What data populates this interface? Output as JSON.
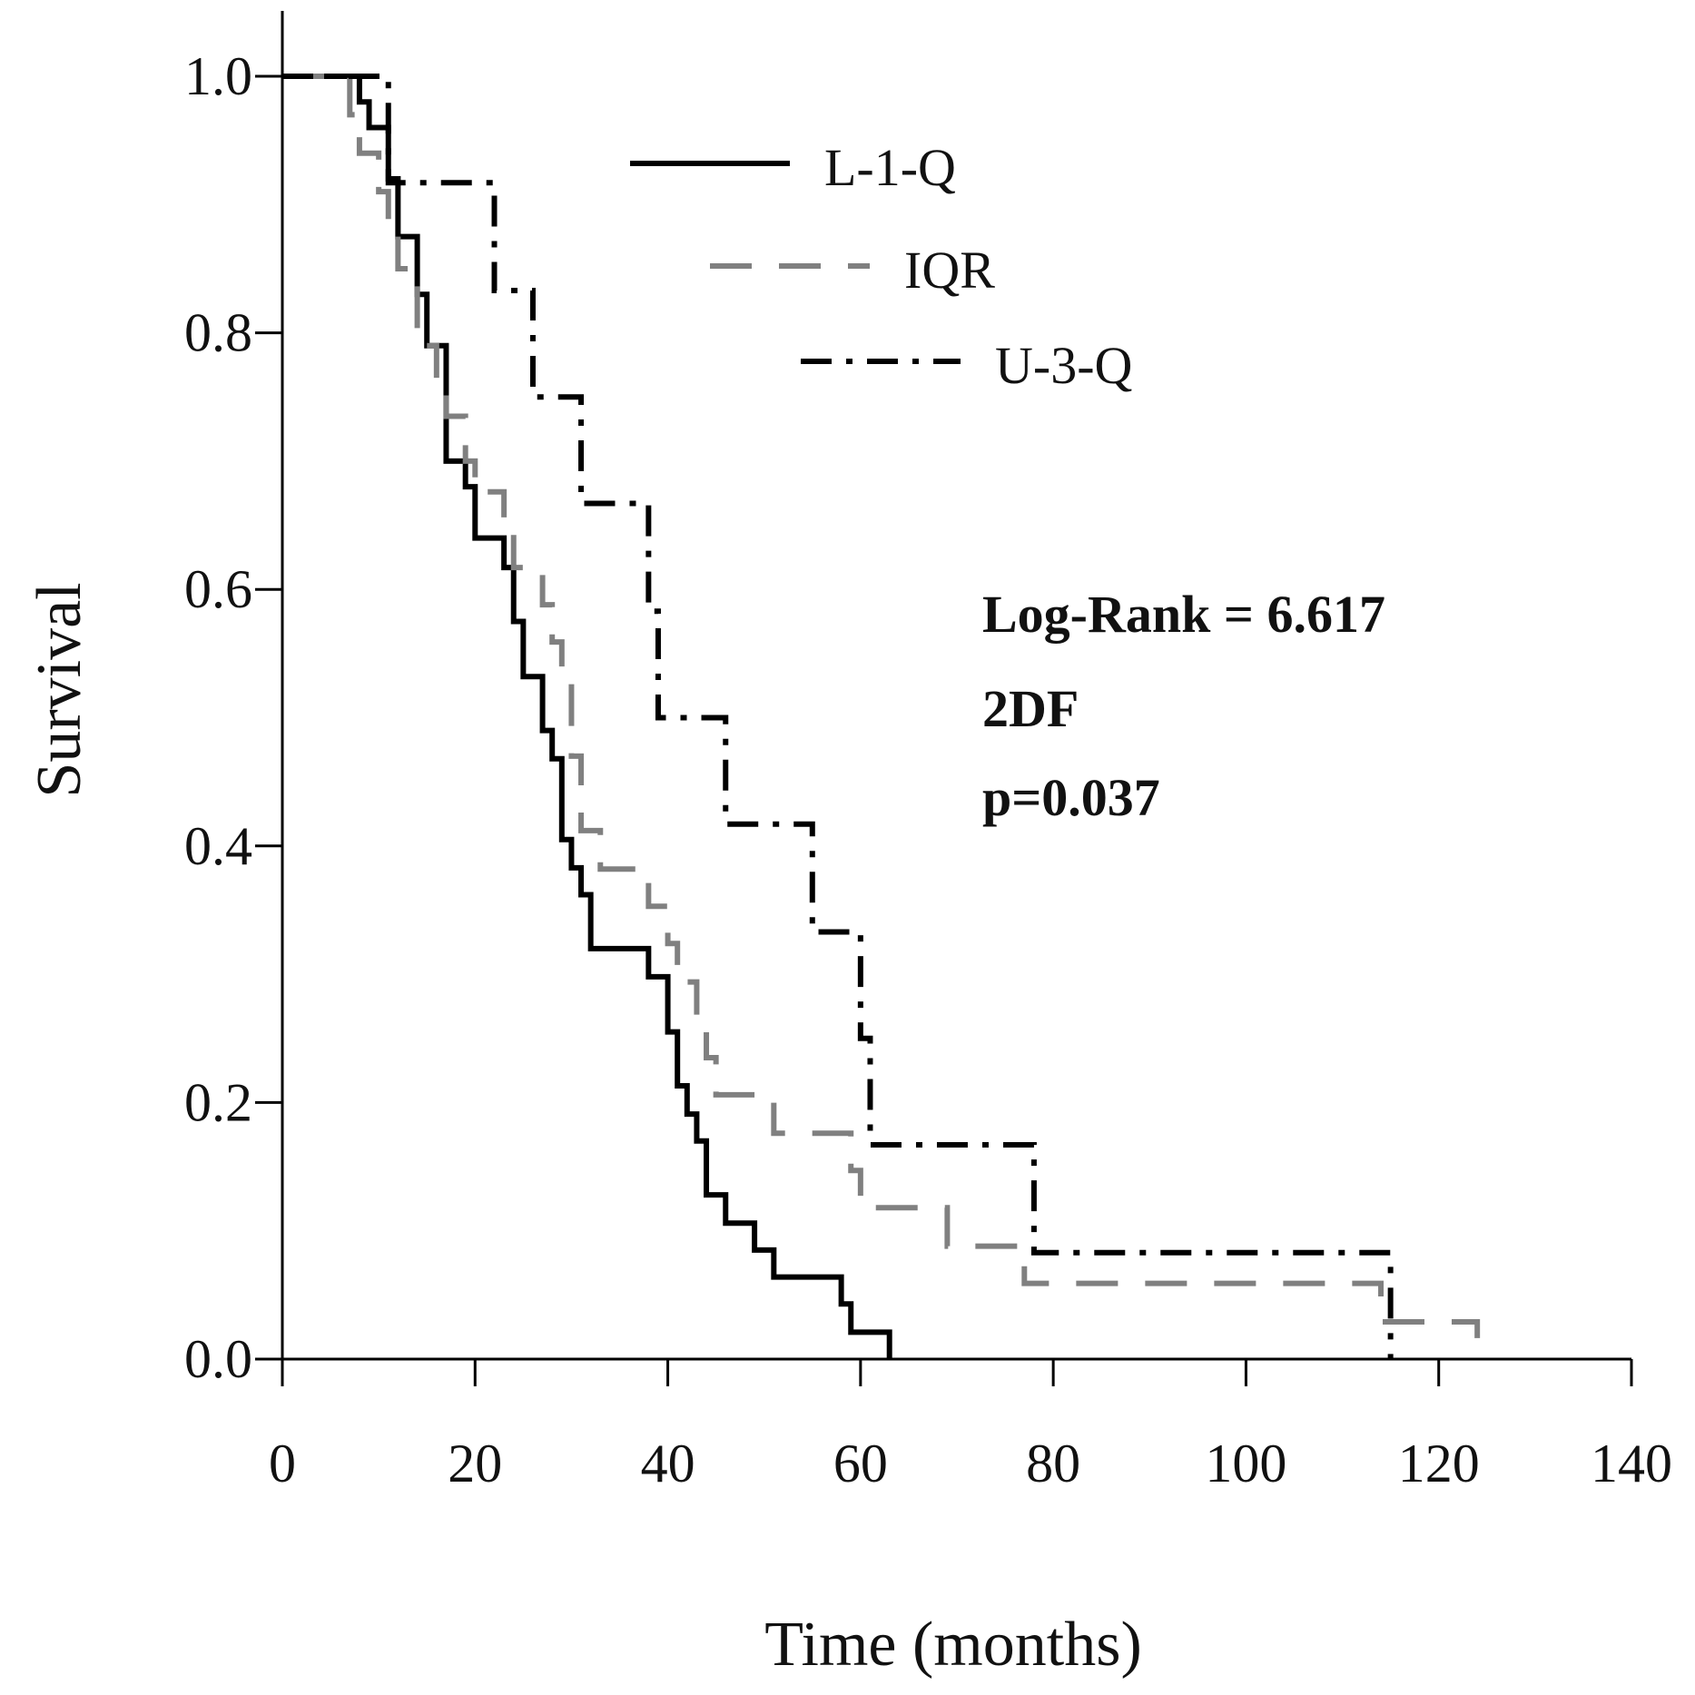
{
  "chart_data": {
    "type": "line",
    "step": true,
    "title": "",
    "xlabel": "Time (months)",
    "ylabel": "Survival",
    "xlim": [
      0,
      140
    ],
    "ylim": [
      0,
      1.0
    ],
    "x_ticks": [
      "0",
      "20",
      "40",
      "60",
      "80",
      "100",
      "120",
      "140"
    ],
    "x_tick_values": [
      0,
      20,
      40,
      60,
      80,
      100,
      120,
      140
    ],
    "y_ticks": [
      "0.0",
      "0.2",
      "0.4",
      "0.6",
      "0.8",
      "1.0"
    ],
    "y_tick_values": [
      0,
      0.2,
      0.4,
      0.6,
      0.8,
      1.0
    ],
    "grid": false,
    "legend_position": "top-center",
    "series": [
      {
        "name": "L-1-Q",
        "color": "#000000",
        "style": "solid",
        "points": [
          [
            0,
            1.0
          ],
          [
            8,
            0.98
          ],
          [
            9,
            0.96
          ],
          [
            11,
            0.92
          ],
          [
            12,
            0.875
          ],
          [
            14,
            0.83
          ],
          [
            15,
            0.79
          ],
          [
            17,
            0.7
          ],
          [
            19,
            0.68
          ],
          [
            20,
            0.64
          ],
          [
            23,
            0.617
          ],
          [
            24,
            0.575
          ],
          [
            25,
            0.532
          ],
          [
            27,
            0.49
          ],
          [
            28,
            0.468
          ],
          [
            29,
            0.405
          ],
          [
            30,
            0.383
          ],
          [
            31,
            0.362
          ],
          [
            32,
            0.32
          ],
          [
            38,
            0.298
          ],
          [
            40,
            0.255
          ],
          [
            41,
            0.213
          ],
          [
            42,
            0.191
          ],
          [
            43,
            0.17
          ],
          [
            44,
            0.128
          ],
          [
            46,
            0.106
          ],
          [
            49,
            0.085
          ],
          [
            51,
            0.064
          ],
          [
            58,
            0.043
          ],
          [
            59,
            0.021
          ],
          [
            63,
            0.0
          ]
        ]
      },
      {
        "name": "IQR",
        "color": "#808080",
        "style": "dashed",
        "points": [
          [
            0,
            1.0
          ],
          [
            7,
            0.97
          ],
          [
            8,
            0.94
          ],
          [
            10,
            0.91
          ],
          [
            11,
            0.88
          ],
          [
            12,
            0.85
          ],
          [
            14,
            0.79
          ],
          [
            16,
            0.76
          ],
          [
            17,
            0.735
          ],
          [
            19,
            0.7
          ],
          [
            20,
            0.676
          ],
          [
            23,
            0.647
          ],
          [
            24,
            0.617
          ],
          [
            27,
            0.588
          ],
          [
            28,
            0.559
          ],
          [
            29,
            0.529
          ],
          [
            30,
            0.47
          ],
          [
            31,
            0.412
          ],
          [
            33,
            0.382
          ],
          [
            38,
            0.353
          ],
          [
            40,
            0.324
          ],
          [
            41,
            0.294
          ],
          [
            43,
            0.265
          ],
          [
            44,
            0.235
          ],
          [
            45,
            0.206
          ],
          [
            51,
            0.176
          ],
          [
            59,
            0.147
          ],
          [
            60,
            0.118
          ],
          [
            69,
            0.088
          ],
          [
            77,
            0.059
          ],
          [
            114,
            0.029
          ],
          [
            124,
            0.0
          ]
        ]
      },
      {
        "name": "U-3-Q",
        "color": "#000000",
        "style": "dashdot",
        "points": [
          [
            0,
            1.0
          ],
          [
            11,
            0.917
          ],
          [
            22,
            0.833
          ],
          [
            26,
            0.75
          ],
          [
            31,
            0.667
          ],
          [
            38,
            0.583
          ],
          [
            39,
            0.5
          ],
          [
            46,
            0.417
          ],
          [
            55,
            0.333
          ],
          [
            60,
            0.25
          ],
          [
            61,
            0.167
          ],
          [
            78,
            0.083
          ],
          [
            115,
            0.0
          ]
        ]
      }
    ],
    "annotations": [
      "Log-Rank = 6.617",
      "2DF",
      "p=0.037"
    ]
  }
}
